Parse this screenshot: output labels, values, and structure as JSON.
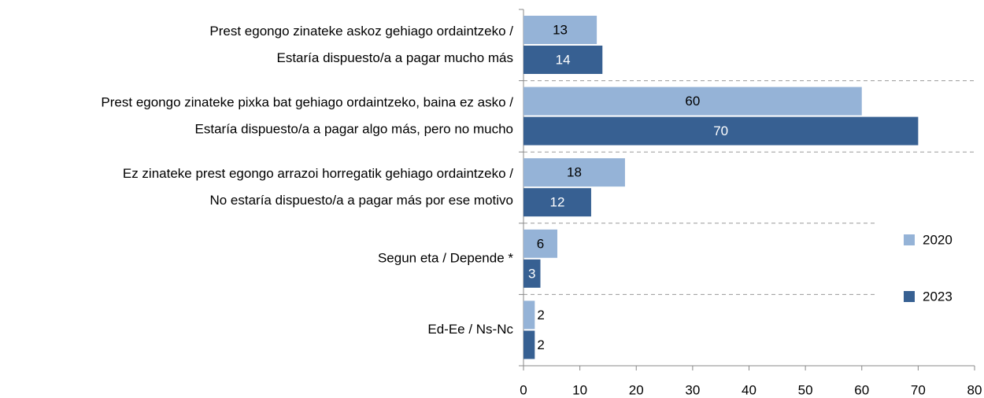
{
  "chart_data": {
    "type": "bar",
    "orientation": "horizontal",
    "categories": [
      [
        "Prest egongo zinateke askoz gehiago ordaintzeko /",
        "Estaría dispuesto/a a pagar mucho más"
      ],
      [
        "Prest egongo zinateke pixka bat gehiago ordaintzeko, baina ez asko /",
        "Estaría dispuesto/a a pagar algo más, pero no mucho"
      ],
      [
        "Ez zinateke prest egongo arrazoi horregatik gehiago ordaintzeko /",
        "No estaría dispuesto/a a pagar más por ese motivo"
      ],
      [
        "Segun eta / Depende *"
      ],
      [
        "Ed-Ee / Ns-Nc"
      ]
    ],
    "series": [
      {
        "name": "2020",
        "color": "#95b3d7",
        "values": [
          13,
          60,
          18,
          6,
          2
        ]
      },
      {
        "name": "2023",
        "color": "#376092",
        "values": [
          14,
          70,
          12,
          3,
          2
        ]
      }
    ],
    "xlim": [
      0,
      80
    ],
    "xticks": [
      0,
      10,
      20,
      30,
      40,
      50,
      60,
      70,
      80
    ],
    "legend": "right"
  }
}
